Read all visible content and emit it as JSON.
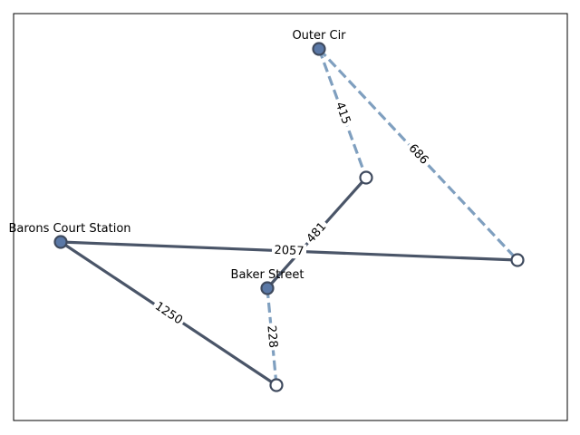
{
  "colors": {
    "solid_edge": "#4a5568",
    "dashed_edge": "#7f9fbf",
    "filled_node": "#5a78a6",
    "node_outline": "#3f4a5e"
  },
  "nodes": [
    {
      "id": "outer-cir",
      "label": "Outer Cir",
      "filled": true
    },
    {
      "id": "barons-court",
      "label": "Barons Court Station",
      "filled": true
    },
    {
      "id": "baker-street",
      "label": "Baker Street",
      "filled": true
    },
    {
      "id": "n-mid",
      "label": "",
      "filled": false
    },
    {
      "id": "n-right",
      "label": "",
      "filled": false
    },
    {
      "id": "n-bottom",
      "label": "",
      "filled": false
    }
  ],
  "edges": [
    {
      "from": "outer-cir",
      "to": "n-mid",
      "weight": "415",
      "style": "dashed"
    },
    {
      "from": "outer-cir",
      "to": "n-right",
      "weight": "686",
      "style": "dashed"
    },
    {
      "from": "n-mid",
      "to": "baker-street",
      "weight": "481",
      "style": "solid"
    },
    {
      "from": "barons-court",
      "to": "n-right",
      "weight": "2057",
      "style": "solid"
    },
    {
      "from": "barons-court",
      "to": "n-bottom",
      "weight": "1250",
      "style": "solid"
    },
    {
      "from": "baker-street",
      "to": "n-bottom",
      "weight": "228",
      "style": "dashed"
    }
  ]
}
